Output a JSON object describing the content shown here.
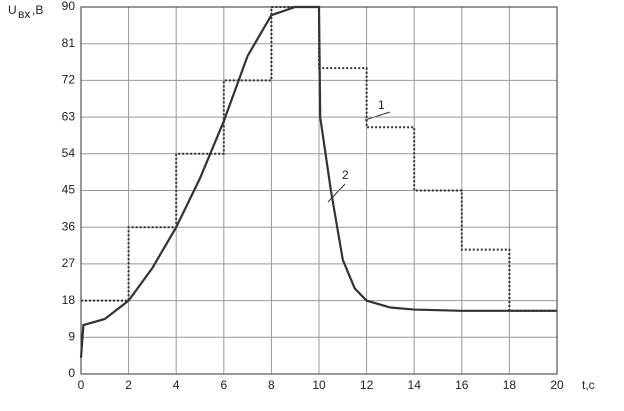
{
  "chart_data": {
    "type": "line",
    "y_label": "U",
    "y_label_sub": "вх",
    "y_label_unit": ",B",
    "x_label": "t,c",
    "xlim": [
      0,
      20
    ],
    "xticks": [
      0,
      2,
      4,
      6,
      8,
      10,
      12,
      14,
      16,
      18,
      20
    ],
    "ylim": [
      0,
      90
    ],
    "yticks": [
      0,
      9,
      18,
      27,
      36,
      45,
      54,
      63,
      72,
      81,
      90
    ],
    "grid": true,
    "series": [
      {
        "name": "1",
        "color": "#333333",
        "style": "dotted",
        "x": [
          0,
          2,
          2,
          4,
          4,
          6,
          6,
          8,
          8,
          10,
          10,
          12,
          12,
          14,
          14,
          16,
          16,
          18,
          18,
          20
        ],
        "values": [
          18,
          18,
          36,
          36,
          54,
          54,
          72,
          72,
          90,
          90,
          75,
          75,
          60.5,
          60.5,
          45,
          45,
          30.5,
          30.5,
          15.5,
          15.5
        ]
      },
      {
        "name": "2",
        "color": "#333333",
        "style": "solid",
        "x": [
          0,
          0.1,
          1,
          2,
          3,
          4,
          5,
          6,
          7,
          8,
          9,
          10,
          10.05,
          10.5,
          11,
          11.5,
          12,
          13,
          14,
          16,
          20
        ],
        "values": [
          4,
          12,
          13.5,
          18,
          26,
          36,
          48,
          62,
          78,
          88,
          90,
          90,
          63,
          45,
          28,
          21,
          18,
          16.3,
          15.8,
          15.5,
          15.5
        ]
      }
    ]
  }
}
